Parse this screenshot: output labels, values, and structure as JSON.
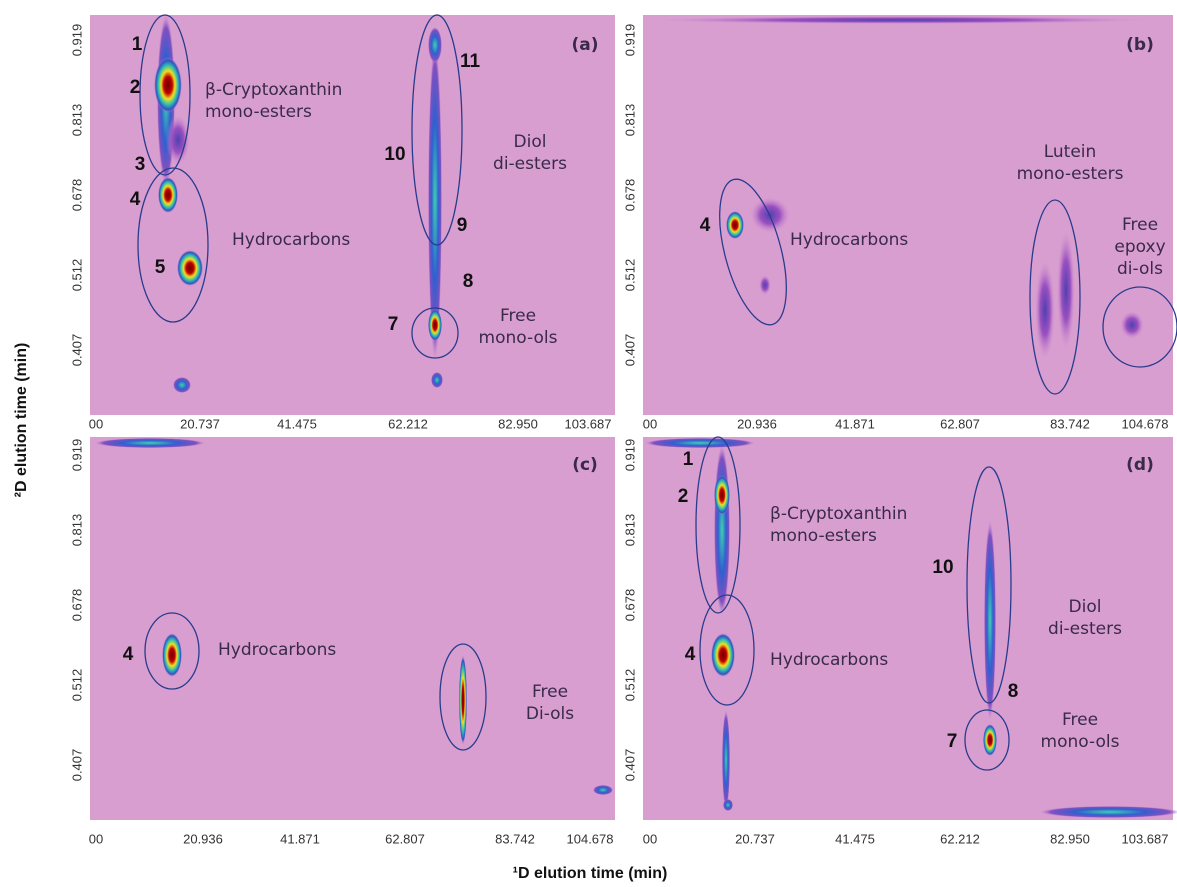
{
  "figure": {
    "y_axis_label": "²D elution time (min)",
    "x_axis_label": "¹D elution time (min)",
    "panels": [
      {
        "label": "(a)",
        "y_ticks": [
          "0.919",
          "0.813",
          "0.678",
          "0.512",
          "0.407"
        ],
        "x_ticks": [
          "00",
          "20.737",
          "41.475",
          "62.212",
          "82.950",
          "103.687"
        ],
        "annotations": [
          [
            "1"
          ],
          [
            "2"
          ],
          [
            "3"
          ],
          [
            "4"
          ],
          [
            "5"
          ],
          [
            "11"
          ],
          [
            "10"
          ],
          [
            "9"
          ],
          [
            "8"
          ],
          [
            "7"
          ],
          [
            "β-Cryptoxanthin",
            "mono-esters"
          ],
          [
            "Hydrocarbons"
          ],
          [
            "Diol",
            "di-esters"
          ],
          [
            "Free",
            "mono-ols"
          ]
        ]
      },
      {
        "label": "(b)",
        "y_ticks": [
          "0.919",
          "0.813",
          "0.678",
          "0.512",
          "0.407"
        ],
        "x_ticks": [
          "00",
          "20.936",
          "41.871",
          "62.807",
          "83.742",
          "104.678"
        ],
        "annotations": [
          [
            "4"
          ],
          [
            "Hydrocarbons"
          ],
          [
            "Lutein",
            "mono-esters"
          ],
          [
            "Free",
            "epoxy",
            "di-ols"
          ]
        ]
      },
      {
        "label": "(c)",
        "y_ticks": [
          "0.919",
          "0.813",
          "0.678",
          "0.512",
          "0.407"
        ],
        "x_ticks": [
          "00",
          "20.936",
          "41.871",
          "62.807",
          "83.742",
          "104.678"
        ],
        "annotations": [
          [
            "4"
          ],
          [
            "Hydrocarbons"
          ],
          [
            "Free",
            "Di-ols"
          ]
        ]
      },
      {
        "label": "(d)",
        "y_ticks": [
          "0.919",
          "0.813",
          "0.678",
          "0.512",
          "0.407"
        ],
        "x_ticks": [
          "00",
          "20.737",
          "41.475",
          "62.212",
          "82.950",
          "103.687"
        ],
        "annotations": [
          [
            "1"
          ],
          [
            "2"
          ],
          [
            "4"
          ],
          [
            "10"
          ],
          [
            "8"
          ],
          [
            "7"
          ],
          [
            "β-Cryptoxanthin",
            "mono-esters"
          ],
          [
            "Hydrocarbons"
          ],
          [
            "Diol",
            "di-esters"
          ],
          [
            "Free",
            "mono-ols"
          ]
        ]
      }
    ]
  }
}
